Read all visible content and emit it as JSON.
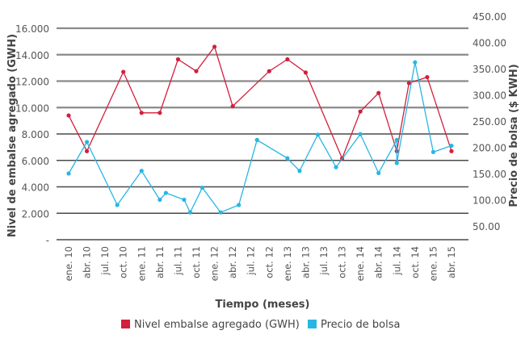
{
  "chart_data": {
    "type": "line",
    "title": "",
    "xlabel": "Tiempo (meses)",
    "ylabel": "Nivel de embalse agregado (GWH)",
    "y2label": "Precio de bolsa ($ KWH)",
    "grid": true,
    "legend_position": "bottom",
    "x_tick_labels": [
      "ene. 10",
      "abr. 10",
      "jul. 10",
      "oct. 10",
      "ene. 11",
      "abr. 11",
      "jul. 11",
      "oct. 11",
      "ene. 12",
      "abr. 12",
      "jul. 12",
      "oct. 12",
      "ene. 13",
      "abr. 13",
      "jul. 13",
      "oct. 13",
      "ene. 14",
      "abr. 14",
      "jul. 14",
      "oct. 14",
      "ene. 15",
      "abr. 15"
    ],
    "x_range": [
      "2010-01",
      "2015-04"
    ],
    "y_ticks": [
      "-",
      "2.000",
      "4.000",
      "6.000",
      "8.000",
      "10.000",
      "12.000",
      "14.000",
      "16.000"
    ],
    "ylim": [
      0,
      16000
    ],
    "y2_ticks": [
      "50.00",
      "100.00",
      "150.00",
      "200.00",
      "250.00",
      "300.00",
      "350.00",
      "400.00",
      "450.00"
    ],
    "y2lim": [
      50,
      450
    ],
    "series": [
      {
        "name": "Nivel embalse agregado (GWH)",
        "axis": "left",
        "color": "#d21f3c",
        "points": [
          [
            "2010-01",
            9400
          ],
          [
            "2010-04",
            6700
          ],
          [
            "2010-10",
            12700
          ],
          [
            "2011-01",
            9600
          ],
          [
            "2011-04",
            9600
          ],
          [
            "2011-07",
            13650
          ],
          [
            "2011-10",
            12750
          ],
          [
            "2012-01",
            14600
          ],
          [
            "2012-04",
            10100
          ],
          [
            "2012-10",
            12750
          ],
          [
            "2013-01",
            13650
          ],
          [
            "2013-04",
            12650
          ],
          [
            "2013-10",
            6150
          ],
          [
            "2014-01",
            9700
          ],
          [
            "2014-04",
            11100
          ],
          [
            "2014-07",
            6700
          ],
          [
            "2014-09",
            11850
          ],
          [
            "2014-12",
            12300
          ],
          [
            "2015-04",
            6700
          ]
        ]
      },
      {
        "name": "Precio de bolsa",
        "axis": "right",
        "color": "#29b6e3",
        "points": [
          [
            "2010-01",
            150
          ],
          [
            "2010-04",
            210
          ],
          [
            "2010-09",
            90
          ],
          [
            "2011-01",
            155
          ],
          [
            "2011-04",
            100
          ],
          [
            "2011-05",
            113
          ],
          [
            "2011-08",
            100
          ],
          [
            "2011-09",
            76
          ],
          [
            "2011-11",
            123
          ],
          [
            "2012-02",
            76
          ],
          [
            "2012-05",
            90
          ],
          [
            "2012-08",
            214
          ],
          [
            "2013-01",
            179
          ],
          [
            "2013-03",
            155
          ],
          [
            "2013-06",
            224
          ],
          [
            "2013-09",
            162
          ],
          [
            "2014-01",
            225
          ],
          [
            "2014-04",
            151
          ],
          [
            "2014-07",
            214
          ],
          [
            "2014-07",
            170
          ],
          [
            "2014-10",
            362
          ],
          [
            "2015-01",
            191
          ],
          [
            "2015-04",
            203
          ]
        ]
      }
    ]
  }
}
